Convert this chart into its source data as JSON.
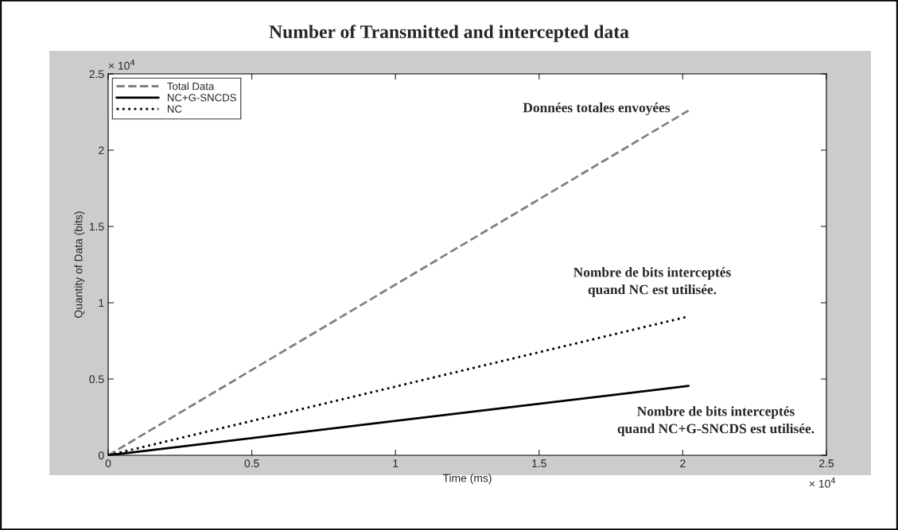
{
  "chart_data": {
    "type": "line",
    "title": "Number of Transmitted and intercepted data",
    "xlabel": "Time (ms)",
    "ylabel": "Quantity of Data (bits)",
    "x": [
      0,
      2.02
    ],
    "series": [
      {
        "name": "Total Data",
        "color": "#808080",
        "line_style": "dashed",
        "values": [
          0,
          2.26
        ]
      },
      {
        "name": "NC+G-SNCDS",
        "color": "#000000",
        "line_style": "solid",
        "values": [
          0,
          0.455
        ]
      },
      {
        "name": "NC",
        "color": "#000000",
        "line_style": "dotted",
        "values": [
          0,
          0.91
        ]
      }
    ],
    "xlim": [
      0,
      2.5
    ],
    "ylim": [
      0,
      2.5
    ],
    "xticks": [
      0,
      0.5,
      1,
      1.5,
      2,
      2.5
    ],
    "yticks": [
      0,
      0.5,
      1,
      1.5,
      2,
      2.5
    ],
    "annotations": [
      "Données totales envoyées",
      "Nombre de bits interceptés\nquand NC est utilisée.",
      "Nombre de bits interceptés\nquand NC+G-SNCDS est utilisée.",
      "× 10$^{4}$",
      "× 10$^{4}$"
    ],
    "legend": "top left",
    "grid": false,
    "marker": "none"
  }
}
